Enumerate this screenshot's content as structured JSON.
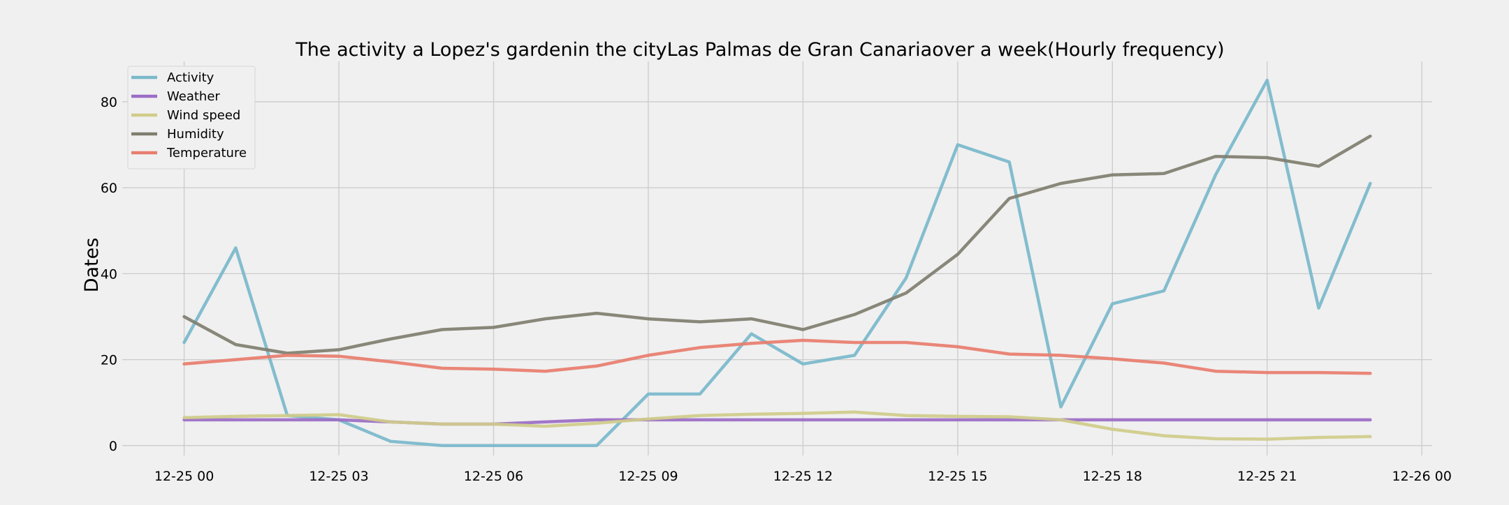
{
  "chart_data": {
    "type": "line",
    "title": "The activity a Lopez's gardenin the cityLas Palmas de Gran Canariaover a week(Hourly frequency)",
    "xlabel": "",
    "ylabel": "Dates",
    "xlim": [
      "2024-12-24 22:48",
      "2024-12-26 00:12"
    ],
    "ylim": [
      -2.3,
      89.4
    ],
    "x_ticks": [
      "2024-12-25 00:00",
      "2024-12-25 03:00",
      "2024-12-25 06:00",
      "2024-12-25 09:00",
      "2024-12-25 12:00",
      "2024-12-25 15:00",
      "2024-12-25 18:00",
      "2024-12-25 21:00",
      "2024-12-26 00:00"
    ],
    "x_tick_labels": [
      "12-25 00",
      "12-25 03",
      "12-25 06",
      "12-25 09",
      "12-25 12",
      "12-25 15",
      "12-25 18",
      "12-25 21",
      "12-26 00"
    ],
    "y_ticks": [
      0,
      20,
      40,
      60,
      80
    ],
    "y_tick_labels": [
      "0",
      "20",
      "40",
      "60",
      "80"
    ],
    "grid": true,
    "legend_position": "top-left",
    "x": [
      "2024-12-25 00:00",
      "2024-12-25 01:00",
      "2024-12-25 02:00",
      "2024-12-25 03:00",
      "2024-12-25 04:00",
      "2024-12-25 05:00",
      "2024-12-25 06:00",
      "2024-12-25 07:00",
      "2024-12-25 08:00",
      "2024-12-25 09:00",
      "2024-12-25 10:00",
      "2024-12-25 11:00",
      "2024-12-25 12:00",
      "2024-12-25 13:00",
      "2024-12-25 14:00",
      "2024-12-25 15:00",
      "2024-12-25 16:00",
      "2024-12-25 17:00",
      "2024-12-25 18:00",
      "2024-12-25 19:00",
      "2024-12-25 20:00",
      "2024-12-25 21:00",
      "2024-12-25 22:00",
      "2024-12-25 23:00"
    ],
    "series": [
      {
        "name": "Activity",
        "color": "#7ab8cb",
        "values": [
          24,
          46,
          7,
          6,
          1,
          0,
          0,
          0,
          0,
          12,
          12,
          26,
          19,
          21,
          39,
          70,
          66,
          9,
          33,
          36,
          63,
          85,
          32,
          61
        ]
      },
      {
        "name": "Weather",
        "color": "#9b6dc6",
        "values": [
          6,
          6,
          6,
          6,
          5.5,
          5,
          5,
          5.5,
          6,
          6,
          6,
          6,
          6,
          6,
          6,
          6,
          6,
          6,
          6,
          6,
          6,
          6,
          6,
          6
        ]
      },
      {
        "name": "Wind speed",
        "color": "#cfcc8a",
        "values": [
          6.5,
          6.8,
          7,
          7.2,
          5.5,
          5,
          5,
          4.5,
          5.2,
          6.2,
          7,
          7.3,
          7.5,
          7.8,
          7,
          6.8,
          6.7,
          6,
          3.8,
          2.3,
          1.6,
          1.5,
          1.9,
          2.1
        ]
      },
      {
        "name": "Humidity",
        "color": "#7f7e6f",
        "values": [
          30,
          23.5,
          21.5,
          22.3,
          24.8,
          27,
          27.5,
          29.5,
          30.8,
          29.5,
          28.8,
          29.5,
          27,
          30.5,
          35.5,
          44.5,
          57.5,
          61,
          63,
          63.3,
          67.3,
          67,
          65,
          72
        ]
      },
      {
        "name": "Temperature",
        "color": "#e87d6e",
        "values": [
          19,
          20,
          21,
          20.8,
          19.5,
          18,
          17.8,
          17.3,
          18.5,
          21,
          22.8,
          23.8,
          24.5,
          24,
          24,
          23,
          21.3,
          21,
          20.2,
          19.2,
          17.3,
          17,
          17,
          16.8
        ]
      }
    ]
  }
}
